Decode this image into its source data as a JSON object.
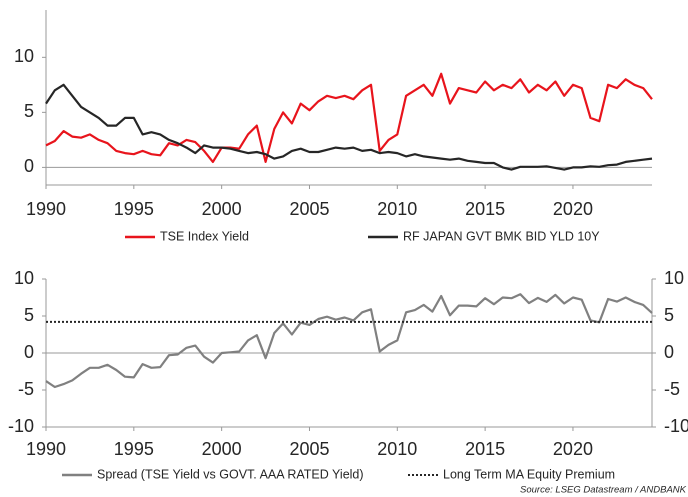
{
  "chart_data": [
    {
      "type": "line",
      "x": [
        1990,
        1990.5,
        1991,
        1991.5,
        1992,
        1992.5,
        1993,
        1993.5,
        1994,
        1994.5,
        1995,
        1995.5,
        1996,
        1996.5,
        1997,
        1997.5,
        1998,
        1998.5,
        1999,
        1999.5,
        2000,
        2000.5,
        2001,
        2001.5,
        2002,
        2002.5,
        2003,
        2003.5,
        2004,
        2004.5,
        2005,
        2005.5,
        2006,
        2006.5,
        2007,
        2007.5,
        2008,
        2008.5,
        2009,
        2009.5,
        2010,
        2010.5,
        2011,
        2011.5,
        2012,
        2012.5,
        2013,
        2013.5,
        2014,
        2014.5,
        2015,
        2015.5,
        2016,
        2016.5,
        2017,
        2017.5,
        2018,
        2018.5,
        2019,
        2019.5,
        2020,
        2020.5,
        2021,
        2021.5,
        2022,
        2022.5,
        2023,
        2023.5,
        2024,
        2024.5
      ],
      "series": [
        {
          "name": "TSE Index Yield",
          "color": "#e8141c",
          "values": [
            2.0,
            2.4,
            3.3,
            2.8,
            2.7,
            3.0,
            2.5,
            2.2,
            1.5,
            1.3,
            1.2,
            1.5,
            1.2,
            1.1,
            2.2,
            2.0,
            2.5,
            2.3,
            1.5,
            0.5,
            1.8,
            1.8,
            1.7,
            3.0,
            3.8,
            0.5,
            3.5,
            5.0,
            4.0,
            5.8,
            5.2,
            6.0,
            6.5,
            6.3,
            6.5,
            6.2,
            7.0,
            7.5,
            1.5,
            2.5,
            3.0,
            6.5,
            7.0,
            7.5,
            6.5,
            8.5,
            5.8,
            7.2,
            7.0,
            6.8,
            7.8,
            7.0,
            7.5,
            7.2,
            8.0,
            6.8,
            7.5,
            7.0,
            7.8,
            6.5,
            7.5,
            7.2,
            4.5,
            4.2,
            7.5,
            7.2,
            8.0,
            7.5,
            7.2,
            6.2
          ]
        },
        {
          "name": "RF JAPAN GVT BMK BID YLD 10Y",
          "color": "#262626",
          "values": [
            5.8,
            7.0,
            7.5,
            6.5,
            5.5,
            5.0,
            4.5,
            3.8,
            3.8,
            4.5,
            4.5,
            3.0,
            3.2,
            3.0,
            2.5,
            2.2,
            1.8,
            1.3,
            2.0,
            1.8,
            1.8,
            1.7,
            1.5,
            1.3,
            1.4,
            1.2,
            0.8,
            1.0,
            1.5,
            1.7,
            1.4,
            1.4,
            1.6,
            1.8,
            1.7,
            1.8,
            1.5,
            1.6,
            1.3,
            1.4,
            1.3,
            1.0,
            1.2,
            1.0,
            0.9,
            0.8,
            0.7,
            0.8,
            0.6,
            0.5,
            0.4,
            0.4,
            0.0,
            -0.2,
            0.05,
            0.05,
            0.05,
            0.1,
            -0.05,
            -0.2,
            0.0,
            0.0,
            0.1,
            0.05,
            0.2,
            0.25,
            0.5,
            0.6,
            0.7,
            0.8
          ]
        }
      ],
      "xlim": [
        1990,
        2024.5
      ],
      "xticks": [
        1990,
        1995,
        2000,
        2005,
        2010,
        2015,
        2020
      ],
      "ylim": [
        -1.6,
        14.3
      ],
      "yticks": [
        0,
        5,
        10
      ]
    },
    {
      "type": "line",
      "x": [
        1990,
        1990.5,
        1991,
        1991.5,
        1992,
        1992.5,
        1993,
        1993.5,
        1994,
        1994.5,
        1995,
        1995.5,
        1996,
        1996.5,
        1997,
        1997.5,
        1998,
        1998.5,
        1999,
        1999.5,
        2000,
        2000.5,
        2001,
        2001.5,
        2002,
        2002.5,
        2003,
        2003.5,
        2004,
        2004.5,
        2005,
        2005.5,
        2006,
        2006.5,
        2007,
        2007.5,
        2008,
        2008.5,
        2009,
        2009.5,
        2010,
        2010.5,
        2011,
        2011.5,
        2012,
        2012.5,
        2013,
        2013.5,
        2014,
        2014.5,
        2015,
        2015.5,
        2016,
        2016.5,
        2017,
        2017.5,
        2018,
        2018.5,
        2019,
        2019.5,
        2020,
        2020.5,
        2021,
        2021.5,
        2022,
        2022.5,
        2023,
        2023.5,
        2024,
        2024.5
      ],
      "series": [
        {
          "name": "Spread (TSE Yield vs GOVT. AAA RATED Yield)",
          "color": "#808080",
          "values": [
            -3.8,
            -4.6,
            -4.2,
            -3.7,
            -2.8,
            -2.0,
            -2.0,
            -1.6,
            -2.3,
            -3.2,
            -3.3,
            -1.5,
            -2.0,
            -1.9,
            -0.3,
            -0.2,
            0.7,
            1.0,
            -0.5,
            -1.3,
            0.0,
            0.1,
            0.2,
            1.7,
            2.4,
            -0.7,
            2.7,
            4.0,
            2.5,
            4.1,
            3.8,
            4.6,
            4.9,
            4.5,
            4.8,
            4.4,
            5.5,
            5.9,
            0.2,
            1.1,
            1.7,
            5.5,
            5.8,
            6.5,
            5.6,
            7.7,
            5.1,
            6.4,
            6.4,
            6.3,
            7.4,
            6.6,
            7.5,
            7.4,
            7.95,
            6.75,
            7.45,
            6.9,
            7.85,
            6.7,
            7.5,
            7.2,
            4.4,
            4.15,
            7.3,
            6.95,
            7.5,
            6.9,
            6.5,
            5.4
          ]
        },
        {
          "name": "Long Term MA Equity Premium",
          "color": "#262626",
          "style": "dotted",
          "x": [
            1990,
            2024.5
          ],
          "values": [
            4.2,
            4.2
          ]
        }
      ],
      "xlim": [
        1990,
        2024.5
      ],
      "xticks": [
        1990,
        1995,
        2000,
        2005,
        2010,
        2015,
        2020
      ],
      "ylim": [
        -10,
        10
      ],
      "yticks": [
        -10,
        -5,
        0,
        5,
        10
      ],
      "y2lim": [
        -10,
        10
      ],
      "y2ticks": [
        -10,
        -5,
        0,
        5,
        10
      ],
      "source": "Source: LSEG Datastream / ANDBANK"
    }
  ]
}
